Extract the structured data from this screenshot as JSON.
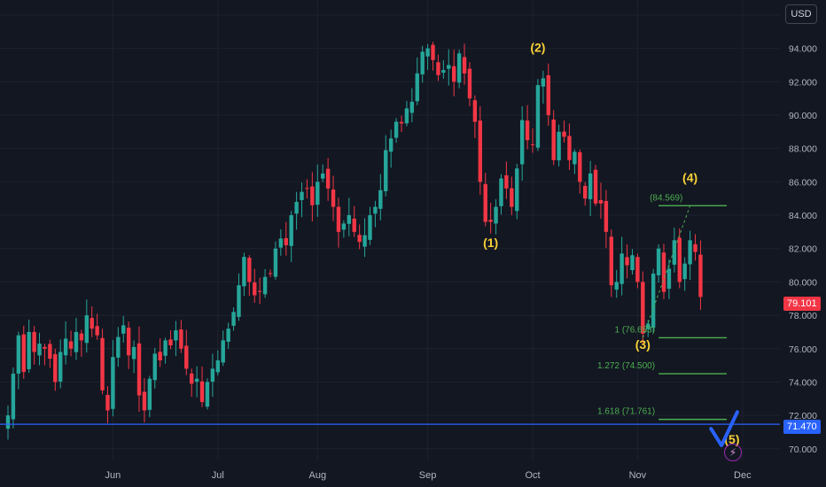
{
  "currency_label": "USD",
  "last_price_tag": "79.101",
  "support_line_tag": "71.470",
  "colors": {
    "background": "#131722",
    "up": "#26a69a",
    "down": "#f23645",
    "grid": "#1e222d",
    "text": "#b2b5be",
    "wave_label": "#f7d036",
    "fib": "#4caf50",
    "support": "#2962ff"
  },
  "chart_data": {
    "type": "candlestick",
    "ylim": [
      69.3,
      96.9
    ],
    "y_ticks": [
      70,
      72,
      74,
      76,
      78,
      80,
      82,
      84,
      86,
      88,
      90,
      92,
      94,
      96
    ],
    "y_tick_labels": [
      "70.000",
      "72.000",
      "74.000",
      "76.000",
      "78.000",
      "80.000",
      "82.000",
      "84.000",
      "86.000",
      "88.000",
      "90.000",
      "92.000",
      "94.000",
      "96.000"
    ],
    "x_tick_labels": [
      {
        "label": "Jun",
        "bar": 20
      },
      {
        "label": "Jul",
        "bar": 40
      },
      {
        "label": "Aug",
        "bar": 59
      },
      {
        "label": "Sep",
        "bar": 80
      },
      {
        "label": "Oct",
        "bar": 100
      },
      {
        "label": "Nov",
        "bar": 120
      },
      {
        "label": "Dec",
        "bar": 140
      }
    ],
    "close_path": [
      [
        0,
        72.0
      ],
      [
        1,
        74.5
      ],
      [
        2,
        76.8
      ],
      [
        3,
        74.6
      ],
      [
        4,
        77.0
      ],
      [
        5,
        75.8
      ],
      [
        6,
        76.3
      ],
      [
        7,
        76.0
      ],
      [
        8,
        75.4
      ],
      [
        9,
        74.0
      ],
      [
        10,
        75.8
      ],
      [
        11,
        76.6
      ],
      [
        12,
        76.0
      ],
      [
        13,
        77.0
      ],
      [
        14,
        76.5
      ],
      [
        15,
        78.0
      ],
      [
        16,
        77.2
      ],
      [
        17,
        76.8
      ],
      [
        18,
        73.5
      ],
      [
        19,
        72.3
      ],
      [
        20,
        75.5
      ],
      [
        21,
        76.7
      ],
      [
        22,
        77.4
      ],
      [
        23,
        75.6
      ],
      [
        24,
        76.1
      ],
      [
        25,
        73.2
      ],
      [
        26,
        72.3
      ],
      [
        27,
        74.2
      ],
      [
        28,
        75.7
      ],
      [
        29,
        75.3
      ],
      [
        30,
        76.5
      ],
      [
        31,
        76.2
      ],
      [
        32,
        77.1
      ],
      [
        33,
        76.0
      ],
      [
        34,
        74.8
      ],
      [
        35,
        73.9
      ],
      [
        36,
        74.2
      ],
      [
        37,
        72.8
      ],
      [
        38,
        74.0
      ],
      [
        39,
        74.8
      ],
      [
        40,
        75.3
      ],
      [
        41,
        76.5
      ],
      [
        42,
        77.2
      ],
      [
        43,
        78.2
      ],
      [
        44,
        79.8
      ],
      [
        45,
        81.5
      ],
      [
        46,
        80.0
      ],
      [
        47,
        79.2
      ],
      [
        48,
        79.4
      ],
      [
        49,
        80.3
      ],
      [
        50,
        80.5
      ],
      [
        51,
        82.0
      ],
      [
        52,
        82.6
      ],
      [
        53,
        82.2
      ],
      [
        54,
        84.0
      ],
      [
        55,
        84.8
      ],
      [
        56,
        85.4
      ],
      [
        57,
        85.6
      ],
      [
        58,
        84.6
      ],
      [
        59,
        86.0
      ],
      [
        60,
        86.5
      ],
      [
        61,
        85.6
      ],
      [
        62,
        84.5
      ],
      [
        63,
        83.0
      ],
      [
        64,
        83.5
      ],
      [
        65,
        84.0
      ],
      [
        66,
        83.0
      ],
      [
        67,
        82.4
      ],
      [
        68,
        82.8
      ],
      [
        69,
        84.0
      ],
      [
        70,
        84.5
      ],
      [
        71,
        85.5
      ],
      [
        72,
        87.9
      ],
      [
        73,
        88.6
      ],
      [
        74,
        89.6
      ],
      [
        75,
        89.5
      ],
      [
        76,
        90.4
      ],
      [
        77,
        90.8
      ],
      [
        78,
        92.5
      ],
      [
        79,
        93.8
      ],
      [
        80,
        94.0
      ],
      [
        81,
        93.3
      ],
      [
        82,
        92.4
      ],
      [
        83,
        92.7
      ],
      [
        84,
        93.0
      ],
      [
        85,
        92.0
      ],
      [
        86,
        93.7
      ],
      [
        87,
        92.5
      ],
      [
        88,
        91.0
      ],
      [
        89,
        89.6
      ],
      [
        90,
        86.0
      ],
      [
        91,
        83.6
      ],
      [
        92,
        83.6
      ],
      [
        93,
        84.5
      ],
      [
        94,
        86.2
      ],
      [
        95,
        85.6
      ],
      [
        96,
        84.5
      ],
      [
        97,
        86.8
      ],
      [
        98,
        89.7
      ],
      [
        99,
        88.5
      ],
      [
        100,
        88.2
      ],
      [
        101,
        91.8
      ],
      [
        102,
        92.2
      ],
      [
        103,
        90.0
      ],
      [
        104,
        87.3
      ],
      [
        105,
        89.0
      ],
      [
        106,
        88.7
      ],
      [
        107,
        87.3
      ],
      [
        108,
        87.8
      ],
      [
        109,
        86.0
      ],
      [
        110,
        85.0
      ],
      [
        111,
        86.5
      ],
      [
        112,
        84.7
      ],
      [
        113,
        84.7
      ],
      [
        114,
        83.0
      ],
      [
        115,
        79.8
      ],
      [
        116,
        80.0
      ],
      [
        117,
        81.7
      ],
      [
        118,
        81.0
      ],
      [
        119,
        81.6
      ],
      [
        120,
        80.0
      ],
      [
        121,
        76.9
      ],
      [
        122,
        77.5
      ],
      [
        123,
        80.5
      ],
      [
        124,
        82.0
      ],
      [
        125,
        79.4
      ],
      [
        126,
        80.8
      ],
      [
        127,
        82.5
      ],
      [
        128,
        80.0
      ],
      [
        129,
        81.1
      ],
      [
        130,
        82.5
      ],
      [
        131,
        81.8
      ],
      [
        132,
        79.1
      ]
    ],
    "annotations": [
      {
        "text": "(1)",
        "bar": 92,
        "price": 82.1,
        "color": "yellow"
      },
      {
        "text": "(2)",
        "bar": 101,
        "price": 93.8,
        "color": "yellow"
      },
      {
        "text": "(3)",
        "bar": 121,
        "price": 76.0,
        "color": "yellow"
      },
      {
        "text": "(4)",
        "bar": 130,
        "price": 86.0,
        "color": "yellow"
      },
      {
        "text": "(5)",
        "bar": 138,
        "price": 70.3,
        "color": "yellow"
      }
    ],
    "fib_levels": [
      {
        "label": "(84.569)",
        "price": 84.569
      },
      {
        "label": "1 (76.653)",
        "price": 76.653
      },
      {
        "label": "1.272 (74.500)",
        "price": 74.5
      },
      {
        "label": "1.618 (71.761)",
        "price": 71.761
      }
    ],
    "support_line": 71.47,
    "last_price": 79.101
  }
}
